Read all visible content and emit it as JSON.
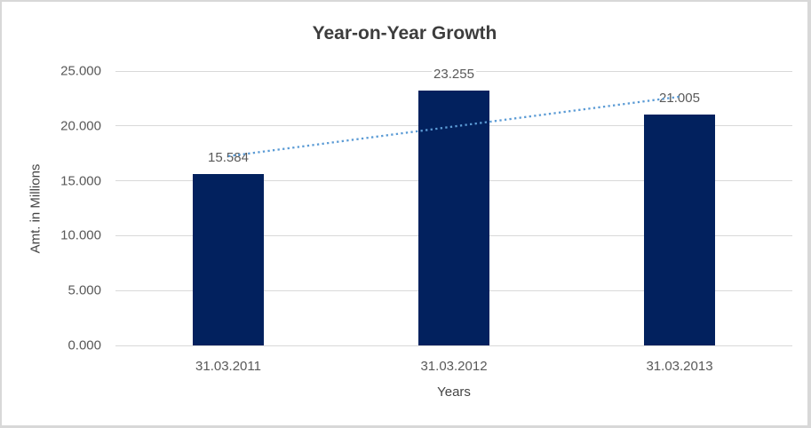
{
  "chart_data": {
    "type": "bar",
    "title": "Year-on-Year Growth",
    "xlabel": "Years",
    "ylabel": "Amt. in Millions",
    "categories": [
      "31.03.2011",
      "31.03.2012",
      "31.03.2013"
    ],
    "values": [
      15.584,
      23.255,
      21.005
    ],
    "data_labels": [
      "15.584",
      "23.255",
      "21.005"
    ],
    "y_ticks": [
      "25.000",
      "20.000",
      "15.000",
      "10.000",
      "5.000",
      "0.000"
    ],
    "y_tick_values": [
      25,
      20,
      15,
      10,
      5,
      0
    ],
    "ylim": [
      0,
      25
    ],
    "grid": true,
    "legend_position": "none",
    "bar_color": "#02215e",
    "trendline": {
      "type": "linear",
      "style": "dotted",
      "color": "#5b9bd5",
      "start_value": 17.24,
      "end_value": 22.66
    },
    "colors": {
      "title_text": "#3d3d3d",
      "axis_text": "#595959",
      "gridline": "#d9d9d9",
      "border": "#d8d8d8",
      "background": "#ffffff"
    }
  }
}
